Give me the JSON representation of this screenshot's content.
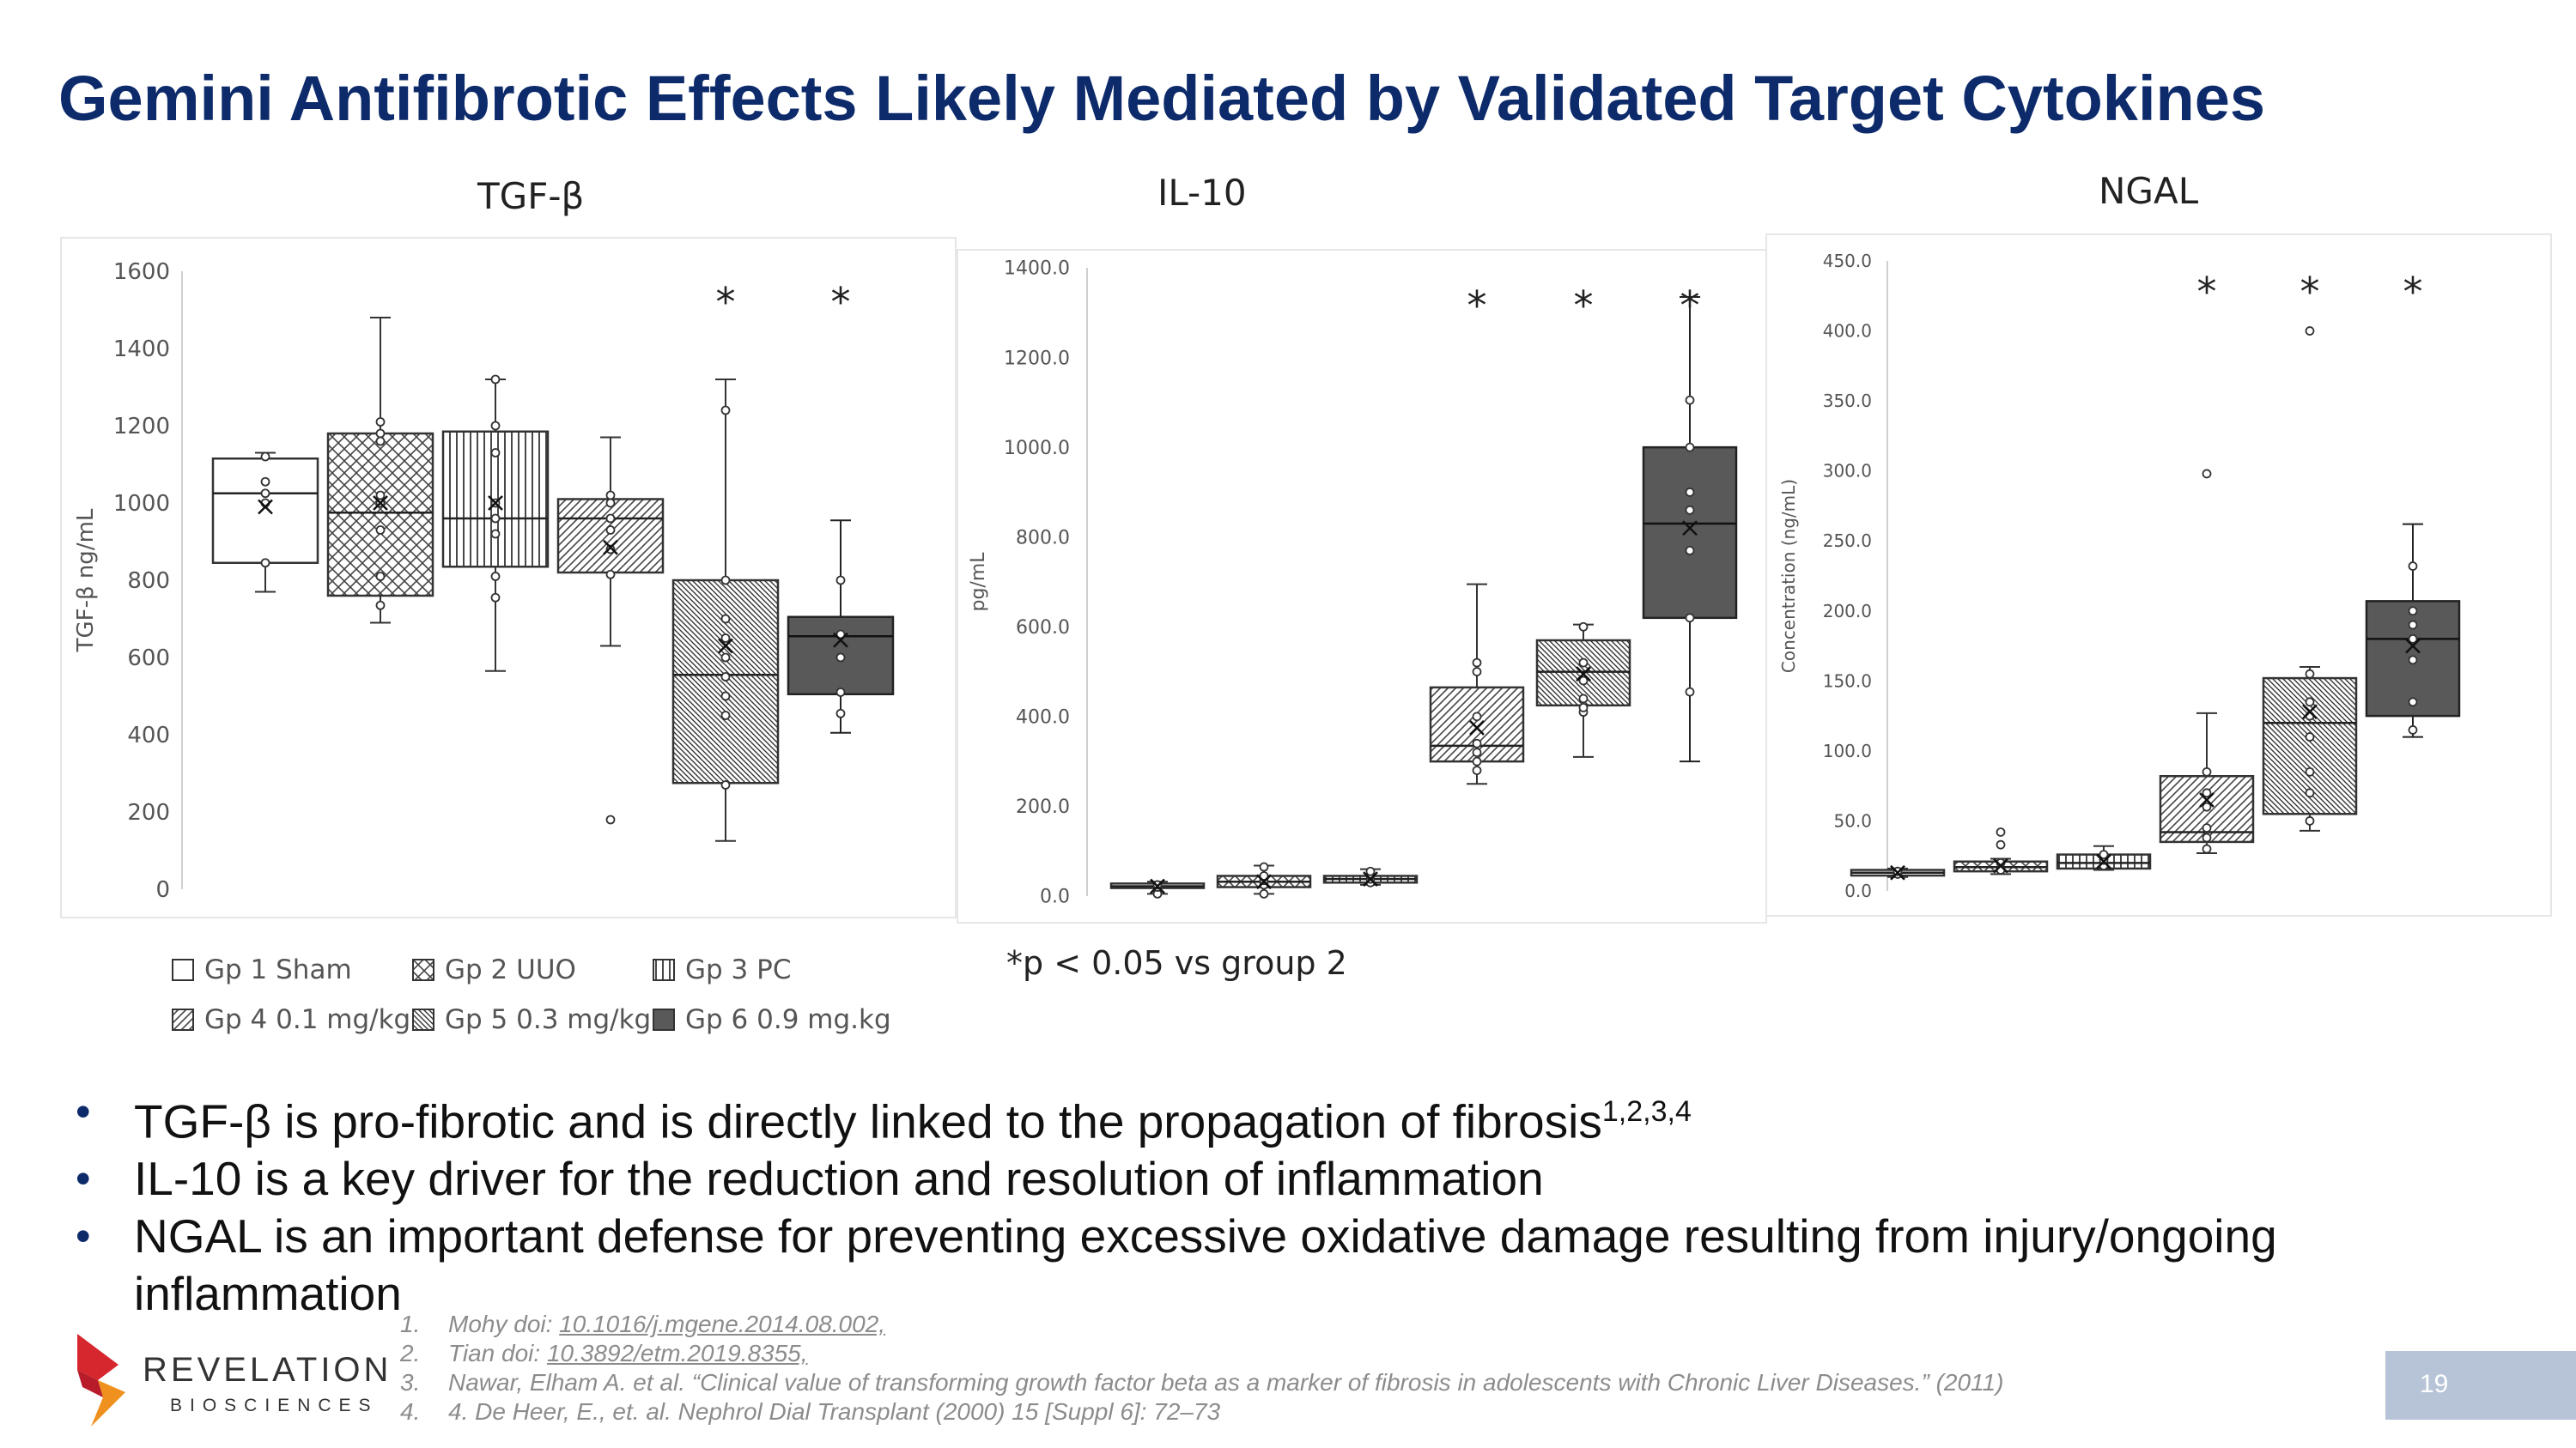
{
  "slide": {
    "title": "Gemini Antifibrotic Effects Likely Mediated by Validated Target Cytokines",
    "page_number": "19",
    "significance_note": "*p < 0.05 vs group 2"
  },
  "legend": [
    {
      "label": "Gp 1 Sham",
      "pattern": "none"
    },
    {
      "label": "Gp 2 UUO",
      "pattern": "crosshatch"
    },
    {
      "label": "Gp 3 PC",
      "pattern": "vertical"
    },
    {
      "label": "Gp 4 0.1 mg/kg",
      "pattern": "diag-wide"
    },
    {
      "label": "Gp 5 0.3 mg/kg",
      "pattern": "diag-dense"
    },
    {
      "label": "Gp 6 0.9 mg.kg",
      "pattern": "solid"
    }
  ],
  "chart_data": [
    {
      "type": "box",
      "title": "TGF-β",
      "ylabel": "TGF-β ng/mL",
      "ylim": [
        0,
        1600
      ],
      "yticks": [
        "0",
        "200",
        "400",
        "600",
        "800",
        "1000",
        "1200",
        "1400",
        "1600"
      ],
      "significance_marker": "*",
      "series": [
        {
          "group": "Gp 1 Sham",
          "min": 770,
          "q1": 845,
          "median": 1025,
          "q3": 1115,
          "max": 1130,
          "mean": 990,
          "points": [
            845,
            1000,
            1025,
            1055,
            1120
          ],
          "outliers": [],
          "significant": false
        },
        {
          "group": "Gp 2 UUO",
          "min": 690,
          "q1": 760,
          "median": 975,
          "q3": 1180,
          "max": 1480,
          "mean": 1000,
          "points": [
            735,
            810,
            930,
            1000,
            1020,
            1160,
            1180,
            1210
          ],
          "outliers": [],
          "significant": false
        },
        {
          "group": "Gp 3 PC",
          "min": 565,
          "q1": 835,
          "median": 960,
          "q3": 1185,
          "max": 1320,
          "mean": 1000,
          "points": [
            755,
            810,
            920,
            960,
            1000,
            1130,
            1200,
            1320
          ],
          "outliers": [],
          "significant": false
        },
        {
          "group": "Gp 4 0.1 mg/kg",
          "min": 630,
          "q1": 820,
          "median": 960,
          "q3": 1010,
          "max": 1170,
          "mean": 885,
          "points": [
            815,
            880,
            930,
            960,
            1000,
            1020
          ],
          "outliers": [
            180
          ],
          "significant": false
        },
        {
          "group": "Gp 5 0.3 mg/kg",
          "min": 125,
          "q1": 275,
          "median": 555,
          "q3": 800,
          "max": 1320,
          "mean": 630,
          "points": [
            270,
            450,
            500,
            550,
            600,
            650,
            700,
            800,
            1240
          ],
          "outliers": [],
          "significant": true
        },
        {
          "group": "Gp 6 0.9 mg.kg",
          "min": 405,
          "q1": 505,
          "median": 655,
          "q3": 705,
          "max": 955,
          "mean": 645,
          "points": [
            455,
            510,
            600,
            660,
            800
          ],
          "outliers": [],
          "significant": true
        }
      ]
    },
    {
      "type": "box",
      "title": "IL-10",
      "ylabel": "pg/mL",
      "ylim": [
        0,
        1400
      ],
      "yticks": [
        "0.0",
        "200.0",
        "400.0",
        "600.0",
        "800.0",
        "1000.0",
        "1200.0",
        "1400.0"
      ],
      "significance_marker": "*",
      "series": [
        {
          "group": "Gp 1 Sham",
          "min": 5,
          "q1": 18,
          "median": 22,
          "q3": 28,
          "max": 32,
          "mean": 22,
          "points": [
            5,
            20,
            25
          ],
          "outliers": [],
          "significant": false
        },
        {
          "group": "Gp 2 UUO",
          "min": 5,
          "q1": 20,
          "median": 32,
          "q3": 45,
          "max": 68,
          "mean": 32,
          "points": [
            5,
            25,
            35,
            45,
            65
          ],
          "outliers": [],
          "significant": false
        },
        {
          "group": "Gp 3 PC",
          "min": 25,
          "q1": 30,
          "median": 38,
          "q3": 45,
          "max": 60,
          "mean": 38,
          "points": [
            30,
            38,
            45,
            55
          ],
          "outliers": [],
          "significant": false
        },
        {
          "group": "Gp 4 0.1 mg/kg",
          "min": 250,
          "q1": 300,
          "median": 335,
          "q3": 465,
          "max": 695,
          "mean": 375,
          "points": [
            280,
            300,
            320,
            340,
            400,
            500,
            520
          ],
          "outliers": [],
          "significant": true
        },
        {
          "group": "Gp 5 0.3 mg/kg",
          "min": 310,
          "q1": 425,
          "median": 500,
          "q3": 570,
          "max": 605,
          "mean": 495,
          "points": [
            410,
            420,
            440,
            480,
            520,
            600
          ],
          "outliers": [],
          "significant": true
        },
        {
          "group": "Gp 6 0.9 mg.kg",
          "min": 300,
          "q1": 620,
          "median": 830,
          "q3": 1000,
          "max": 1335,
          "mean": 820,
          "points": [
            455,
            620,
            770,
            860,
            900,
            1000,
            1105
          ],
          "outliers": [],
          "significant": true
        }
      ]
    },
    {
      "type": "box",
      "title": "NGAL",
      "ylabel": "Concentration (ng/mL)",
      "ylim": [
        0,
        450
      ],
      "yticks": [
        "0.0",
        "50.0",
        "100.0",
        "150.0",
        "200.0",
        "250.0",
        "300.0",
        "350.0",
        "400.0",
        "450.0"
      ],
      "significance_marker": "*",
      "series": [
        {
          "group": "Gp 1 Sham",
          "min": 10,
          "q1": 11,
          "median": 13,
          "q3": 15,
          "max": 16,
          "mean": 13,
          "points": [
            12,
            14
          ],
          "outliers": [],
          "significant": false
        },
        {
          "group": "Gp 2 UUO",
          "min": 12,
          "q1": 14,
          "median": 17,
          "q3": 21,
          "max": 23,
          "mean": 18,
          "points": [
            15,
            20
          ],
          "outliers": [
            33,
            42
          ],
          "significant": false
        },
        {
          "group": "Gp 3 PC",
          "min": 15,
          "q1": 16,
          "median": 20,
          "q3": 26,
          "max": 32,
          "mean": 21,
          "points": [
            18,
            22,
            26
          ],
          "outliers": [],
          "significant": false
        },
        {
          "group": "Gp 4 0.1 mg/kg",
          "min": 27,
          "q1": 35,
          "median": 42,
          "q3": 82,
          "max": 127,
          "mean": 65,
          "points": [
            30,
            38,
            45,
            60,
            70,
            85
          ],
          "outliers": [
            298
          ],
          "significant": true
        },
        {
          "group": "Gp 5 0.3 mg/kg",
          "min": 43,
          "q1": 55,
          "median": 120,
          "q3": 152,
          "max": 160,
          "mean": 128,
          "points": [
            50,
            70,
            85,
            110,
            125,
            135,
            155
          ],
          "outliers": [
            400
          ],
          "significant": true
        },
        {
          "group": "Gp 6 0.9 mg.kg",
          "min": 110,
          "q1": 125,
          "median": 180,
          "q3": 207,
          "max": 262,
          "mean": 175,
          "points": [
            115,
            135,
            165,
            180,
            190,
            200,
            232
          ],
          "outliers": [],
          "significant": true
        }
      ]
    }
  ],
  "bullets": [
    {
      "text": "TGF-β is pro-fibrotic and is directly linked to the propagation of fibrosis",
      "superscript": "1,2,3,4"
    },
    {
      "text": "IL-10 is a key driver for the reduction and resolution of inflammation",
      "superscript": ""
    },
    {
      "text": "NGAL is an important defense for preventing excessive oxidative damage resulting from injury/ongoing inflammation",
      "superscript": ""
    }
  ],
  "references": [
    {
      "num": "1.",
      "text": "Mohy doi: ",
      "link": "10.1016/j.mgene.2014.08.002,"
    },
    {
      "num": "2.",
      "text": "Tian doi: ",
      "link": "10.3892/etm.2019.8355,"
    },
    {
      "num": "3.",
      "text": "Nawar, Elham A. et al. “Clinical value of transforming growth factor beta as a marker of fibrosis in adolescents with Chronic Liver Diseases.” (2011)",
      "link": ""
    },
    {
      "num": "4.",
      "text": "4. De Heer, E., et. al. Nephrol Dial Transplant (2000) 15 [Suppl 6]: 72–73",
      "link": ""
    }
  ],
  "logo": {
    "word": "REVELATION",
    "sub": "BIOSCIENCES",
    "colors": [
      "#d6262e",
      "#f0901e"
    ]
  }
}
